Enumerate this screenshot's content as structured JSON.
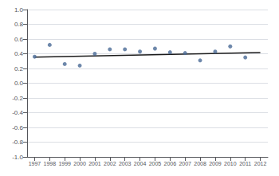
{
  "chart_data": {
    "type": "scatter",
    "series": [
      {
        "type": "scatter",
        "color": "#4a6a96",
        "marker": "circle",
        "x": [
          1997,
          1998,
          1999,
          2000,
          2001,
          2002,
          2003,
          2004,
          2005,
          2006,
          2007,
          2008,
          2009,
          2010,
          2011
        ],
        "values": [
          0.36,
          0.52,
          0.26,
          0.24,
          0.4,
          0.46,
          0.46,
          0.43,
          0.47,
          0.42,
          0.41,
          0.31,
          0.43,
          0.5,
          0.35
        ]
      },
      {
        "type": "line",
        "color": "#1a1a1a",
        "line_style": "solid",
        "x": [
          1997,
          2012
        ],
        "values": [
          0.355,
          0.415
        ]
      }
    ],
    "xlim": [
      1996.5,
      2012.5
    ],
    "xticks": [
      1997,
      1998,
      1999,
      2000,
      2001,
      2002,
      2003,
      2004,
      2005,
      2006,
      2007,
      2008,
      2009,
      2010,
      2011,
      2012
    ],
    "ylim": [
      -1.0,
      1.0
    ],
    "yticks": [
      {
        "value": -1.0,
        "label": "-1.0"
      },
      -0.8,
      -0.6,
      -0.4,
      -0.2,
      {
        "value": 0.0,
        "label": "0.0"
      },
      0.2,
      0.4,
      0.6,
      0.8,
      {
        "value": 1.0,
        "label": "1.0"
      }
    ],
    "grid": true
  }
}
